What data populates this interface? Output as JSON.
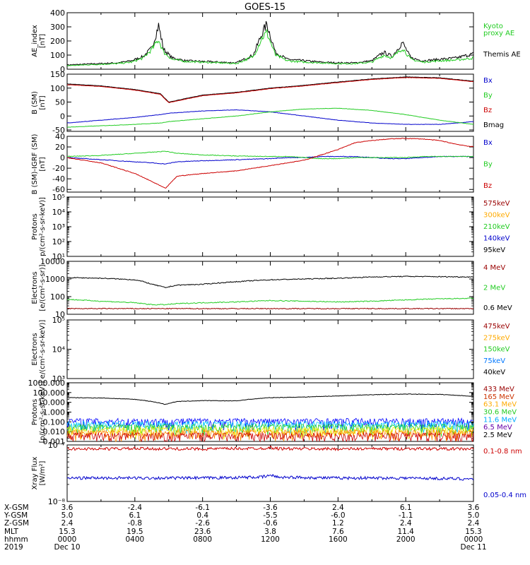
{
  "title": "GOES-15",
  "chart_data": [
    {
      "id": "ae",
      "type": "line",
      "ylabel": [
        "AE_index",
        "[nT]"
      ],
      "scale": "linear",
      "ylim": [
        0,
        400
      ],
      "yticks": [
        {
          "v": 0,
          "t": "0"
        },
        {
          "v": 100,
          "t": "100"
        },
        {
          "v": 200,
          "t": "200"
        },
        {
          "v": 300,
          "t": "300"
        },
        {
          "v": 400,
          "t": "400"
        }
      ],
      "x_hours": [
        0,
        1,
        2,
        3,
        3.8,
        4.5,
        5,
        5.4,
        5.7,
        6.2,
        7,
        8,
        9,
        10,
        11,
        11.5,
        11.8,
        12.3,
        13,
        14,
        15,
        16,
        17,
        18,
        18.7,
        19.2,
        19.8,
        20.3,
        21,
        22,
        23,
        24
      ],
      "series": [
        {
          "name": "Themis AE",
          "color": "#000000",
          "values": [
            30,
            35,
            40,
            45,
            60,
            90,
            150,
            310,
            140,
            80,
            60,
            55,
            50,
            45,
            100,
            250,
            320,
            120,
            70,
            60,
            50,
            45,
            45,
            60,
            120,
            90,
            190,
            80,
            60,
            70,
            80,
            110
          ]
        },
        {
          "name": "Kyoto proxy AE",
          "color": "#22cc22",
          "values": [
            25,
            30,
            35,
            40,
            50,
            80,
            140,
            210,
            120,
            70,
            55,
            50,
            45,
            40,
            90,
            220,
            260,
            100,
            60,
            50,
            45,
            40,
            40,
            50,
            100,
            80,
            150,
            70,
            50,
            60,
            65,
            80
          ]
        }
      ],
      "legend": [
        {
          "text": "Kyoto",
          "color": "#22cc22"
        },
        {
          "text": "proxy AE",
          "color": "#22cc22"
        },
        {
          "text": "Themis AE",
          "color": "#000000"
        }
      ]
    },
    {
      "id": "bsm",
      "type": "line",
      "ylabel": [
        "B (SM)",
        "[nT]"
      ],
      "scale": "linear",
      "ylim": [
        -55,
        150
      ],
      "yticks": [
        {
          "v": -50,
          "t": "-50"
        },
        {
          "v": 0,
          "t": "0"
        },
        {
          "v": 50,
          "t": "50"
        },
        {
          "v": 100,
          "t": "100"
        },
        {
          "v": 150,
          "t": "150"
        }
      ],
      "x_hours": [
        0,
        2,
        4,
        5.5,
        6,
        8,
        10,
        12,
        14,
        16,
        18,
        20,
        22,
        24
      ],
      "series": [
        {
          "name": "Bmag",
          "color": "#000000",
          "values": [
            115,
            108,
            95,
            80,
            50,
            75,
            85,
            100,
            110,
            122,
            133,
            140,
            137,
            125
          ]
        },
        {
          "name": "Bx",
          "color": "#0000cc",
          "values": [
            -25,
            -15,
            -5,
            5,
            10,
            18,
            22,
            15,
            0,
            -15,
            -25,
            -30,
            -30,
            -20
          ]
        },
        {
          "name": "By",
          "color": "#22cc22",
          "values": [
            -40,
            -35,
            -30,
            -25,
            -20,
            -10,
            0,
            15,
            25,
            28,
            20,
            5,
            -15,
            -30
          ]
        },
        {
          "name": "Bz",
          "color": "#cc0000",
          "values": [
            112,
            106,
            93,
            78,
            48,
            73,
            83,
            98,
            108,
            120,
            131,
            138,
            135,
            123
          ]
        }
      ],
      "legend": [
        {
          "text": "Bx",
          "color": "#0000cc"
        },
        {
          "text": "By",
          "color": "#22cc22"
        },
        {
          "text": "Bz",
          "color": "#cc0000"
        },
        {
          "text": "Bmag",
          "color": "#000000"
        }
      ]
    },
    {
      "id": "bigrf",
      "type": "line",
      "ylabel": [
        "B (SM)-IGRF (SM)",
        "[nT]"
      ],
      "scale": "linear",
      "ylim": [
        -65,
        40
      ],
      "yticks": [
        {
          "v": -60,
          "t": "-60"
        },
        {
          "v": -40,
          "t": "-40"
        },
        {
          "v": -20,
          "t": "-20"
        },
        {
          "v": 0,
          "t": "0"
        },
        {
          "v": 20,
          "t": "20"
        },
        {
          "v": 40,
          "t": "40"
        }
      ],
      "x_hours": [
        0,
        1,
        2,
        3,
        4,
        5,
        5.8,
        6.5,
        8,
        10,
        12,
        13,
        14,
        15,
        16,
        17,
        18,
        19,
        20,
        21,
        22,
        23,
        24
      ],
      "series": [
        {
          "name": "Bx",
          "color": "#0000cc",
          "values": [
            0,
            -2,
            -4,
            -6,
            -8,
            -10,
            -12,
            -8,
            -6,
            -4,
            -2,
            0,
            0,
            2,
            2,
            2,
            0,
            -2,
            -2,
            0,
            2,
            2,
            2
          ]
        },
        {
          "name": "By",
          "color": "#22cc22",
          "values": [
            2,
            3,
            4,
            6,
            8,
            10,
            12,
            8,
            5,
            3,
            2,
            2,
            0,
            -2,
            -2,
            0,
            0,
            0,
            0,
            2,
            2,
            2,
            2
          ]
        },
        {
          "name": "Bz",
          "color": "#cc0000",
          "values": [
            0,
            -5,
            -10,
            -20,
            -30,
            -45,
            -58,
            -35,
            -30,
            -25,
            -15,
            -10,
            -5,
            5,
            15,
            28,
            32,
            35,
            36,
            35,
            32,
            25,
            20
          ]
        }
      ],
      "legend": [
        {
          "text": "Bx",
          "color": "#0000cc"
        },
        {
          "text": "By",
          "color": "#22cc22"
        },
        {
          "text": "Bz",
          "color": "#cc0000"
        }
      ]
    },
    {
      "id": "protons1",
      "type": "line",
      "ylabel": [
        "Protons",
        "p/(cm²-s-sr-keV)]"
      ],
      "scale": "log",
      "ylim": [
        10,
        100000
      ],
      "yticks": [
        {
          "v": 10,
          "t": "10¹"
        },
        {
          "v": 100,
          "t": "10²"
        },
        {
          "v": 1000,
          "t": "10³"
        },
        {
          "v": 10000,
          "t": "10⁴"
        },
        {
          "v": 100000,
          "t": "10⁵"
        }
      ],
      "series": [],
      "legend": [
        {
          "text": "575keV",
          "color": "#990000"
        },
        {
          "text": "300keV",
          "color": "#ffaa00"
        },
        {
          "text": "210keV",
          "color": "#22cc22"
        },
        {
          "text": "140keV",
          "color": "#0000cc"
        },
        {
          "text": "95keV",
          "color": "#000000"
        }
      ]
    },
    {
      "id": "electrons1",
      "type": "line",
      "ylabel": [
        "Electrons",
        "[e/(cm²-s-sr)]"
      ],
      "scale": "log",
      "ylim": [
        10,
        10000
      ],
      "yticks": [
        {
          "v": 10,
          "t": "10"
        },
        {
          "v": 100,
          "t": "100"
        },
        {
          "v": 1000,
          "t": "1000"
        },
        {
          "v": 10000,
          "t": "10000"
        }
      ],
      "x_hours": [
        0,
        2,
        4,
        5,
        5.8,
        6.5,
        8,
        10,
        12,
        14,
        16,
        18,
        20,
        22,
        24
      ],
      "series": [
        {
          "name": "0.6 MeV",
          "color": "#000000",
          "values": [
            1200,
            1100,
            900,
            500,
            320,
            450,
            500,
            700,
            900,
            1000,
            1100,
            1300,
            1400,
            1350,
            1300
          ]
        },
        {
          "name": "2 MeV",
          "color": "#22cc22",
          "values": [
            70,
            55,
            45,
            35,
            35,
            40,
            45,
            50,
            60,
            55,
            50,
            55,
            65,
            75,
            80
          ]
        },
        {
          "name": "4 MeV",
          "color": "#990000",
          "values": [
            21,
            21,
            21,
            21,
            21,
            21,
            21,
            21,
            21,
            21,
            21,
            21,
            21,
            21,
            21
          ]
        }
      ],
      "legend": [
        {
          "text": "4 MeV",
          "color": "#990000"
        },
        {
          "text": "2 MeV",
          "color": "#22cc22"
        },
        {
          "text": "0.6 MeV",
          "color": "#000000"
        }
      ]
    },
    {
      "id": "electrons2",
      "type": "line",
      "ylabel": [
        "Electrons",
        "e/(cm²-s-sr-keV)]"
      ],
      "scale": "log",
      "ylim": [
        1000,
        100000
      ],
      "yticks": [
        {
          "v": 1000,
          "t": "10³"
        },
        {
          "v": 10000,
          "t": "10⁴"
        },
        {
          "v": 100000,
          "t": "10⁵"
        }
      ],
      "series": [],
      "legend": [
        {
          "text": "475keV",
          "color": "#990000"
        },
        {
          "text": "275keV",
          "color": "#ffaa00"
        },
        {
          "text": "150keV",
          "color": "#22cc22"
        },
        {
          "text": "75keV",
          "color": "#0077ff"
        },
        {
          "text": "40keV",
          "color": "#000000"
        }
      ]
    },
    {
      "id": "protons2",
      "type": "line",
      "ylabel": [
        "Protons",
        "[p/(cm²-s-sr-keV)]"
      ],
      "scale": "log",
      "ylim": [
        0.001,
        1000
      ],
      "yticks": [
        {
          "v": 0.001,
          "t": "0.001"
        },
        {
          "v": 0.01,
          "t": "0.010"
        },
        {
          "v": 0.1,
          "t": "0.100"
        },
        {
          "v": 1,
          "t": "1.000"
        },
        {
          "v": 10,
          "t": "10.000"
        },
        {
          "v": 100,
          "t": "100.000"
        },
        {
          "v": 1000,
          "t": "1000.000"
        }
      ],
      "x_hours": [
        0,
        2,
        4,
        5,
        5.8,
        6.5,
        8,
        10,
        12,
        14,
        16,
        18,
        20,
        22,
        24
      ],
      "series": [
        {
          "name": "433 MeV",
          "color": "#000000",
          "values": [
            30,
            28,
            20,
            12,
            6,
            12,
            15,
            14,
            30,
            35,
            45,
            60,
            70,
            65,
            40
          ]
        },
        {
          "name": "165 MeV",
          "color": "#0000ff",
          "values": [
            0.12,
            0.12,
            0.12,
            0.12,
            0.12,
            0.12,
            0.12,
            0.12,
            0.12,
            0.12,
            0.12,
            0.12,
            0.12,
            0.12,
            0.12
          ]
        },
        {
          "name": "63.1 MeV",
          "color": "#00c8ff",
          "values": [
            0.06,
            0.06,
            0.06,
            0.06,
            0.06,
            0.06,
            0.06,
            0.06,
            0.06,
            0.06,
            0.06,
            0.06,
            0.06,
            0.06,
            0.06
          ]
        },
        {
          "name": "30.6 MeV",
          "color": "#22cc22",
          "values": [
            0.03,
            0.03,
            0.03,
            0.03,
            0.03,
            0.03,
            0.03,
            0.03,
            0.03,
            0.03,
            0.03,
            0.03,
            0.03,
            0.03,
            0.03
          ]
        },
        {
          "name": "11.6 MeV",
          "color": "#eeee00",
          "values": [
            0.015,
            0.015,
            0.015,
            0.015,
            0.015,
            0.015,
            0.015,
            0.015,
            0.015,
            0.015,
            0.015,
            0.015,
            0.015,
            0.015,
            0.015
          ]
        },
        {
          "name": "6.5 MeV",
          "color": "#ff8800",
          "values": [
            0.008,
            0.008,
            0.008,
            0.008,
            0.008,
            0.008,
            0.008,
            0.008,
            0.008,
            0.008,
            0.008,
            0.008,
            0.008,
            0.008,
            0.008
          ]
        },
        {
          "name": "2.5 MeV",
          "color": "#cc0000",
          "values": [
            0.004,
            0.004,
            0.004,
            0.004,
            0.004,
            0.004,
            0.004,
            0.004,
            0.004,
            0.004,
            0.004,
            0.004,
            0.004,
            0.004,
            0.004
          ]
        }
      ],
      "legend": [
        {
          "text": "433 MeV",
          "color": "#990000"
        },
        {
          "text": "165 MeV",
          "color": "#cc3300"
        },
        {
          "text": "63.1 MeV",
          "color": "#ffaa00"
        },
        {
          "text": "30.6 MeV",
          "color": "#22cc22"
        },
        {
          "text": "11.6 MeV",
          "color": "#00aaff"
        },
        {
          "text": "6.5 MeV",
          "color": "#6600aa"
        },
        {
          "text": "2.5 MeV",
          "color": "#000000"
        }
      ]
    },
    {
      "id": "xray",
      "type": "line",
      "ylabel": [
        "Xray Flux",
        "[W/m²]"
      ],
      "scale": "log",
      "ylim": [
        1e-08,
        1e-07
      ],
      "yticks": [
        {
          "v": 1e-08,
          "t": "10⁻⁸"
        },
        {
          "v": 1e-07,
          "t": "10⁻⁷"
        }
      ],
      "x_hours": [
        0,
        4,
        8,
        11.5,
        12,
        12.5,
        16,
        20,
        24
      ],
      "series": [
        {
          "name": "0.1-0.8 nm",
          "color": "#cc0000",
          "values": [
            8.5e-08,
            8.6e-08,
            8.5e-08,
            8.7e-08,
            9e-08,
            8.6e-08,
            8.5e-08,
            8.6e-08,
            8.5e-08
          ]
        },
        {
          "name": "0.05-0.4 nm",
          "color": "#0000cc",
          "values": [
            2.6e-08,
            2.6e-08,
            2.6e-08,
            2.7e-08,
            2.9e-08,
            2.7e-08,
            2.6e-08,
            2.6e-08,
            2.5e-08
          ]
        }
      ],
      "legend": [
        {
          "text": "0.1-0.8 nm",
          "color": "#cc0000"
        },
        {
          "text": "0.05-0.4 nm",
          "color": "#0000cc"
        }
      ]
    }
  ],
  "ephemeris": {
    "row_labels": [
      "X-GSM",
      "Y-GSM",
      "Z-GSM",
      "MLT",
      "hhmm",
      "2019"
    ],
    "columns": [
      [
        "3.6",
        "5.0",
        "2.4",
        "15.3",
        "0000",
        "Dec 10"
      ],
      [
        "-2.4",
        "6.1",
        "-0.8",
        "19.5",
        "0400",
        ""
      ],
      [
        "-6.1",
        "0.4",
        "-2.6",
        "23.6",
        "0800",
        ""
      ],
      [
        "-3.6",
        "-5.5",
        "-0.6",
        "3.8",
        "1200",
        ""
      ],
      [
        "2.4",
        "-6.0",
        "1.2",
        "7.6",
        "1600",
        ""
      ],
      [
        "6.1",
        "-1.1",
        "2.4",
        "11.4",
        "2000",
        ""
      ],
      [
        "3.6",
        "5.0",
        "2.4",
        "15.3",
        "0000",
        "Dec 11"
      ]
    ]
  }
}
